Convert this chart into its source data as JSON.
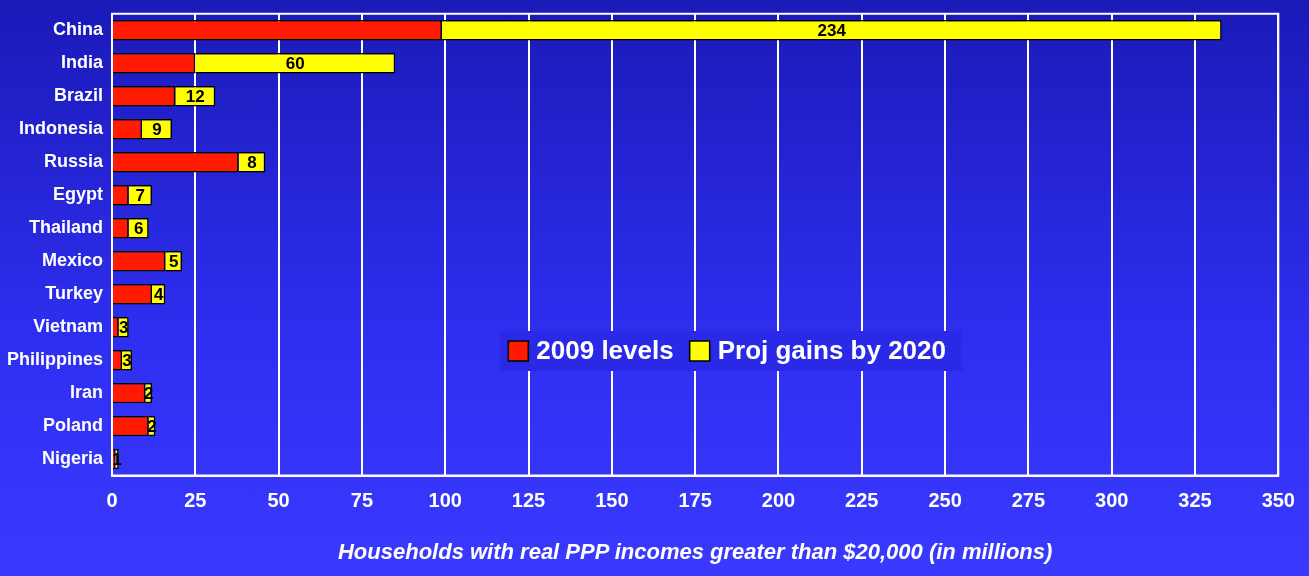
{
  "chart_data": {
    "type": "bar",
    "orientation": "horizontal",
    "stacked": true,
    "xlabel": "Households with real PPP incomes greater than $20,000 (in millions)",
    "categories": [
      "China",
      "India",
      "Brazil",
      "Indonesia",
      "Russia",
      "Egypt",
      "Thailand",
      "Mexico",
      "Turkey",
      "Vietnam",
      "Philippines",
      "Iran",
      "Poland",
      "Nigeria"
    ],
    "series": [
      {
        "name": "2009 levels",
        "color": "#ff1a00",
        "values": [
          99,
          25,
          19,
          9,
          38,
          5,
          5,
          16,
          12,
          2,
          3,
          10,
          11,
          1
        ]
      },
      {
        "name": "Proj gains by 2020",
        "color": "#ffff00",
        "values": [
          234,
          60,
          12,
          9,
          8,
          7,
          6,
          5,
          4,
          3,
          3,
          2,
          2,
          1
        ],
        "value_labels": [
          "234",
          "60",
          "12",
          "9",
          "8",
          "7",
          "6",
          "5",
          "4",
          "3",
          "3",
          "2",
          "2",
          "1"
        ]
      }
    ],
    "xlim": [
      0,
      350
    ],
    "xticks": [
      0,
      25,
      50,
      75,
      100,
      125,
      150,
      175,
      200,
      225,
      250,
      275,
      300,
      325,
      350
    ],
    "grid": "x",
    "legend": "bottom"
  }
}
